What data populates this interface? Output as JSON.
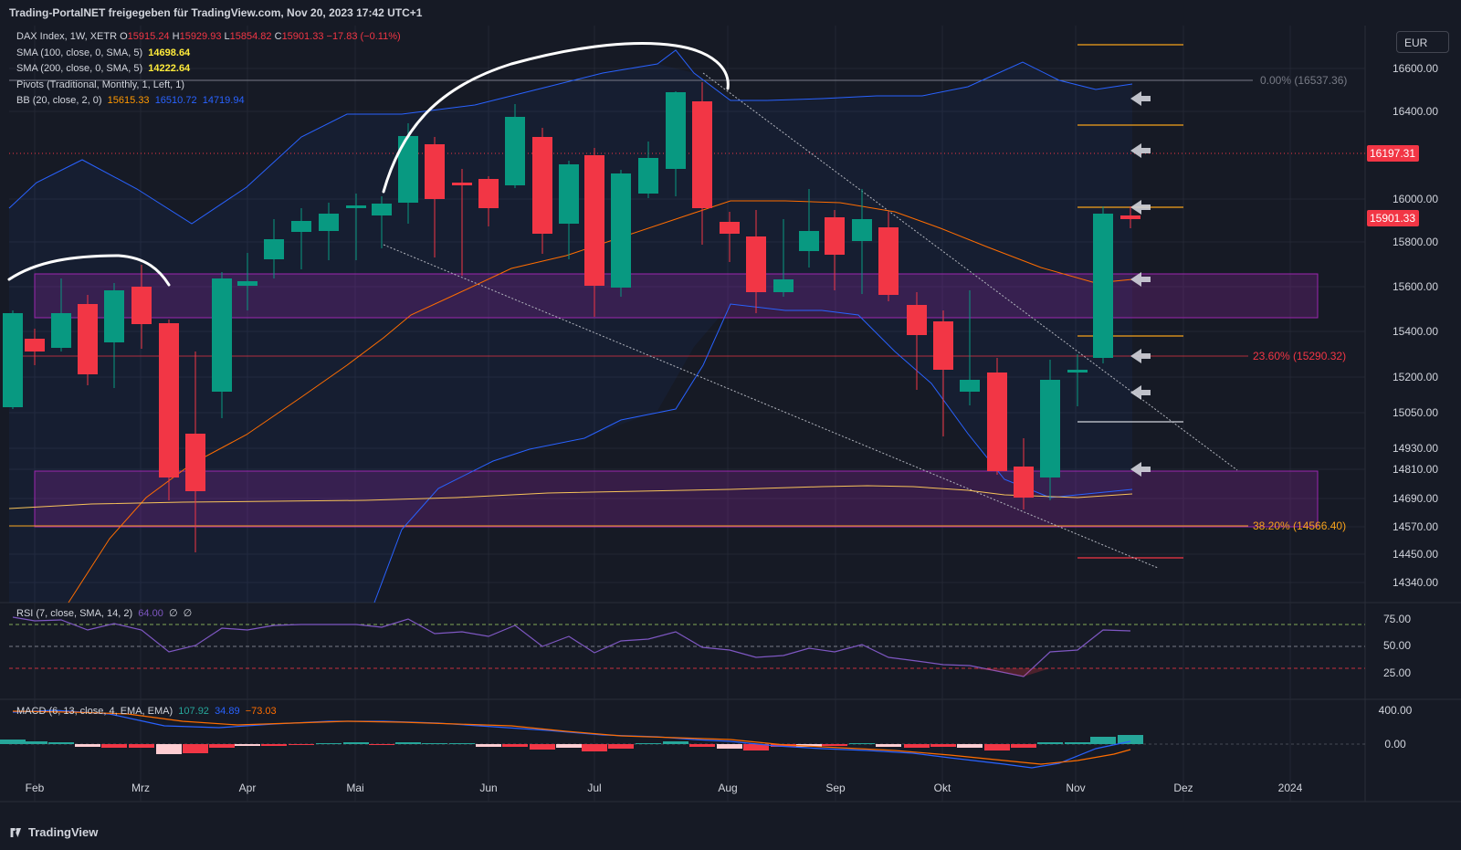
{
  "topbar": {
    "text": "Trading-PortalNET freigegeben für TradingView.com, Nov 20, 2023 17:42 UTC+1"
  },
  "currency": "EUR",
  "footer": {
    "brand": "TradingView"
  },
  "colors": {
    "background": "#161a25",
    "up": "#089981",
    "down": "#f23645",
    "bb_band": "#2962ff",
    "bb_basis": "#ff6d00",
    "sma200": "#f7c35a",
    "rsi": "#7e57c2",
    "zone": "#9c27b0",
    "pivot_level": "#f7a21b"
  },
  "legend": {
    "main": {
      "title": "DAX Index, 1W, XETR",
      "o_label": "O",
      "o": "15915.24",
      "h_label": "H",
      "h": "15929.93",
      "l_label": "L",
      "l": "15854.82",
      "c_label": "C",
      "c": "15901.33",
      "chg": "−17.83 (−0.11%)"
    },
    "sma100": {
      "label": "SMA (100, close, 0, SMA, 5)",
      "value": "14698.64"
    },
    "sma200": {
      "label": "SMA (200, close, 0, SMA, 5)",
      "value": "14222.64"
    },
    "pivots": {
      "label": "Pivots (Traditional, Monthly, 1, Left, 1)"
    },
    "bb": {
      "label": "BB (20, close, 2, 0)",
      "v1": "15615.33",
      "v2": "16510.72",
      "v3": "14719.94"
    },
    "rsi": {
      "label": "RSI (7, close, SMA, 14, 2)",
      "value": "64.00",
      "n1": "∅",
      "n2": "∅"
    },
    "macd": {
      "label": "MACD (6, 13, close, 4, EMA, EMA)",
      "v1": "107.92",
      "v2": "34.89",
      "v3": "−73.03"
    }
  },
  "chart_data": {
    "type": "candlestick",
    "title": "DAX Index, 1W, XETR",
    "x_ticks": [
      "Feb",
      "Mrz",
      "Apr",
      "Mai",
      "Jun",
      "Jul",
      "Aug",
      "Sep",
      "Okt",
      "Nov",
      "Dez",
      "2024"
    ],
    "y_ticks": [
      "16600.00",
      "16400.00",
      "16000.00",
      "15800.00",
      "15600.00",
      "15400.00",
      "15200.00",
      "15050.00",
      "14930.00",
      "14810.00",
      "14690.00",
      "14570.00",
      "14450.00",
      "14340.00"
    ],
    "price_labels": {
      "last": "15901.33",
      "level": "16197.31"
    },
    "fib_labels": [
      "0.00% (16537.36)",
      "23.60% (15290.32)",
      "38.20% (14566.40)"
    ],
    "rsi_ticks": [
      "75.00",
      "50.00",
      "25.00"
    ],
    "macd_ticks": [
      "400.00",
      "0.00"
    ]
  }
}
